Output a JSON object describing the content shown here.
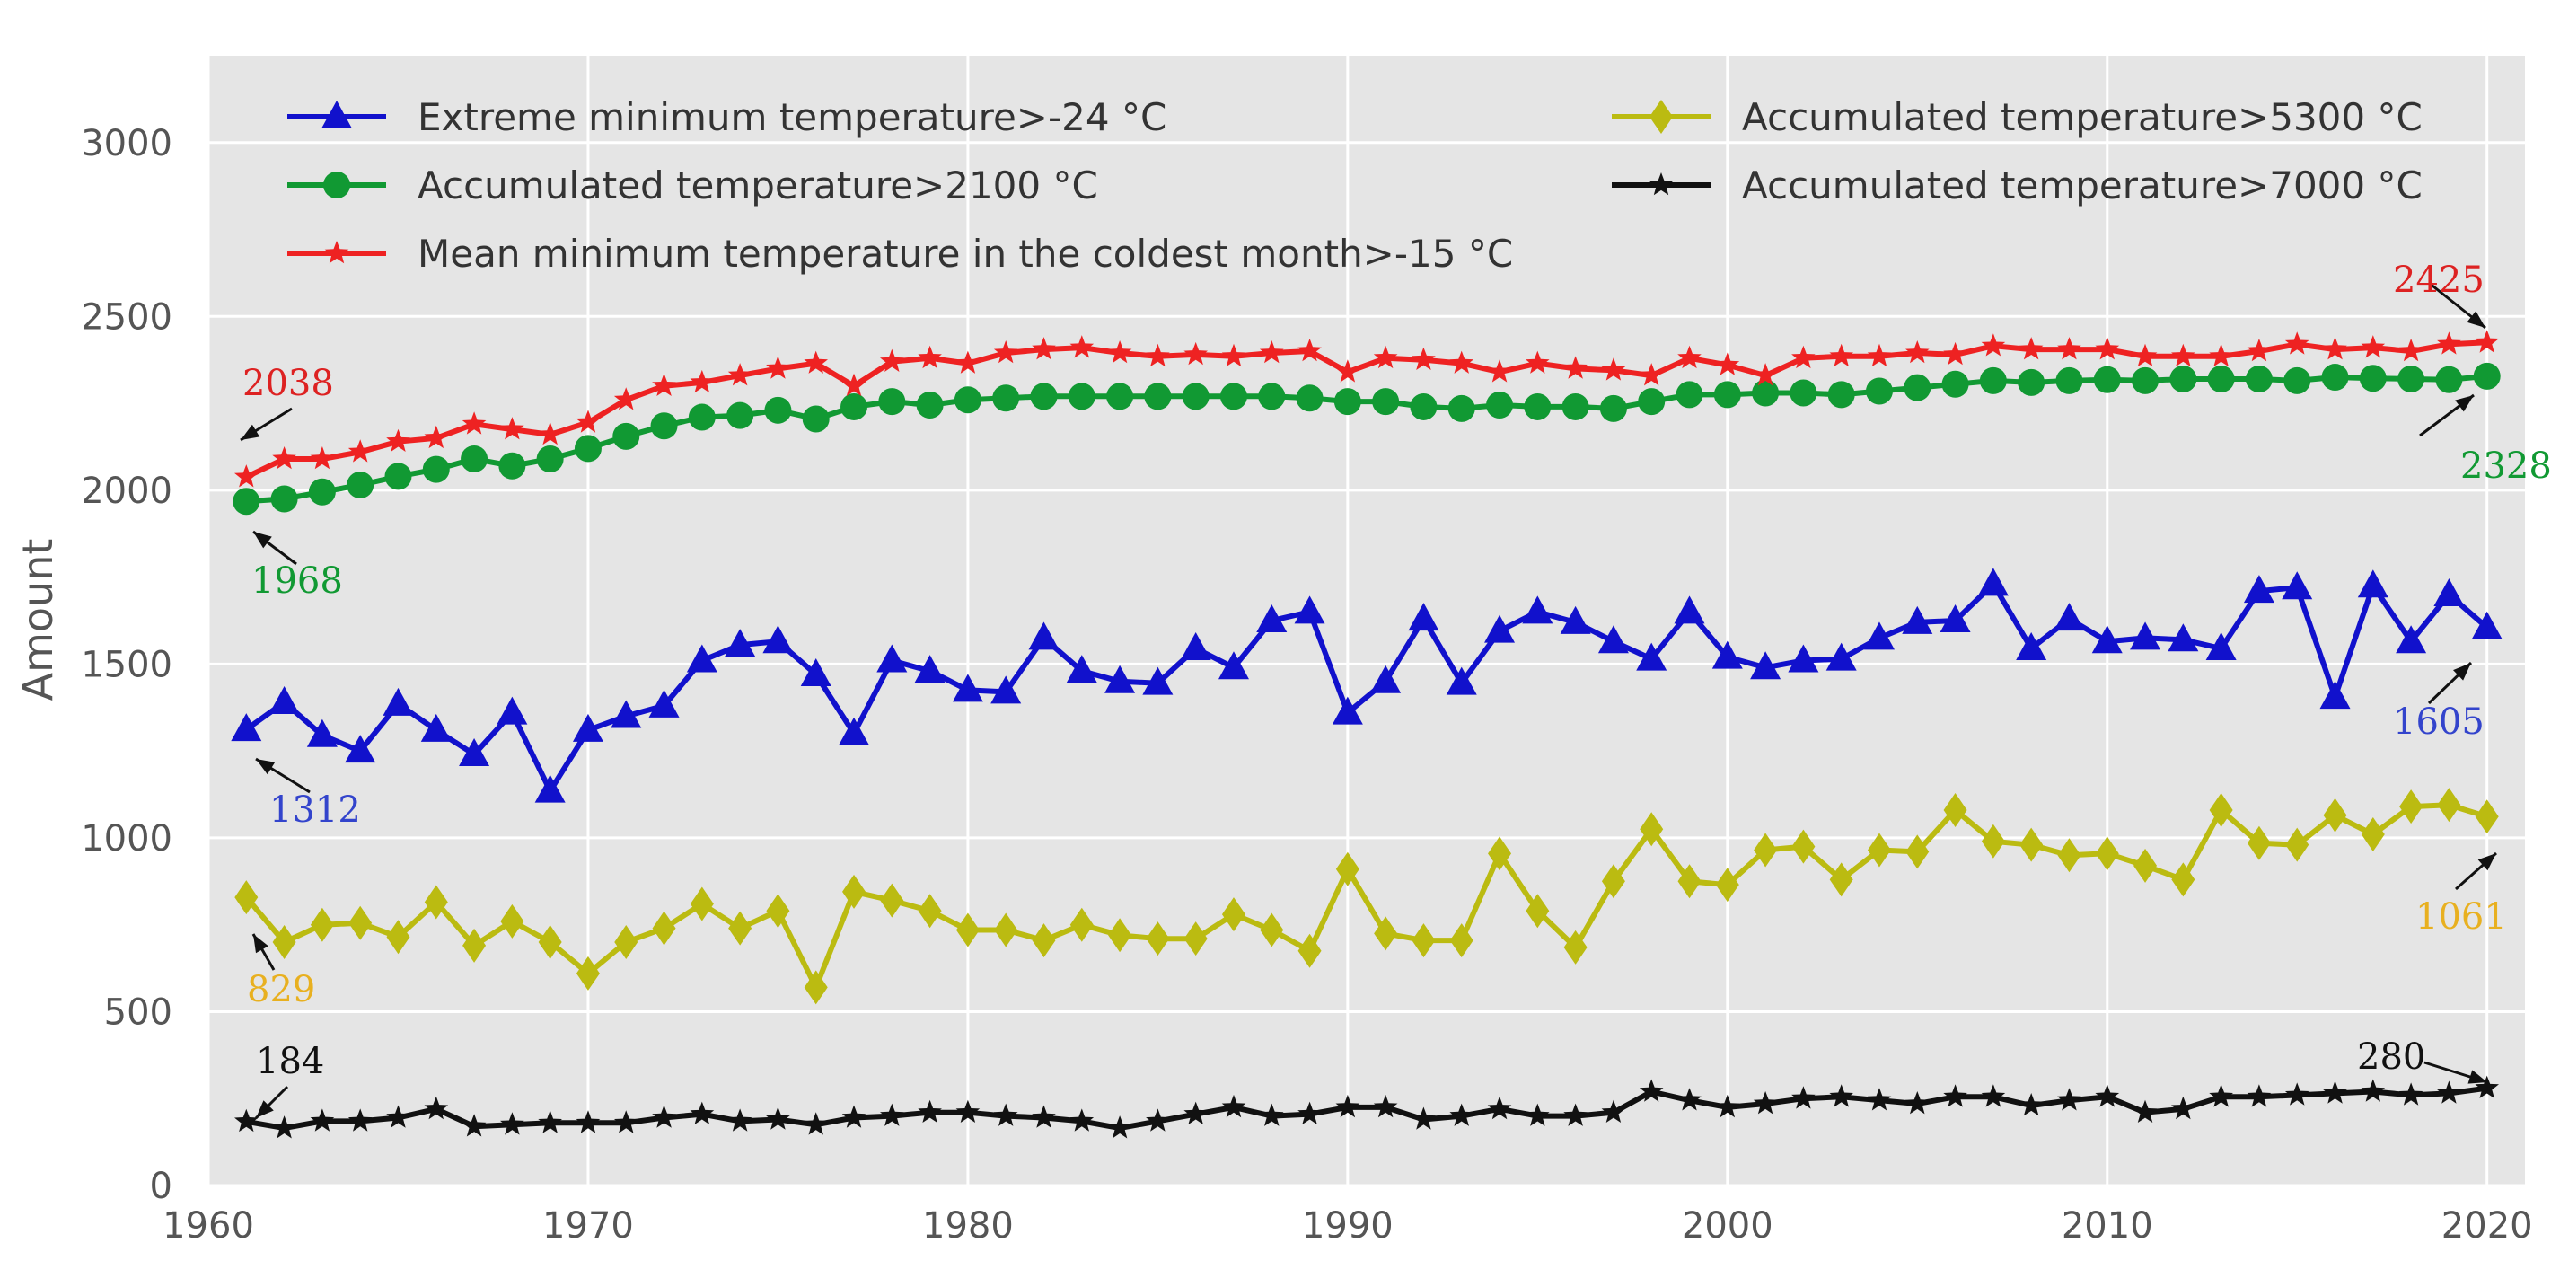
{
  "chart_data": {
    "type": "line",
    "title": "",
    "xlabel": "",
    "ylabel": "Amount",
    "xlim": [
      1960,
      2021
    ],
    "ylim": [
      0,
      3250
    ],
    "x_ticks": [
      "1960",
      "1970",
      "1980",
      "1990",
      "2000",
      "2010",
      "2020"
    ],
    "y_ticks": [
      "0",
      "500",
      "1000",
      "1500",
      "2000",
      "2500",
      "3000"
    ],
    "grid": true,
    "legend_position": "top",
    "x": [
      1961,
      1962,
      1963,
      1964,
      1965,
      1966,
      1967,
      1968,
      1969,
      1970,
      1971,
      1972,
      1973,
      1974,
      1975,
      1976,
      1977,
      1978,
      1979,
      1980,
      1981,
      1982,
      1983,
      1984,
      1985,
      1986,
      1987,
      1988,
      1989,
      1990,
      1991,
      1992,
      1993,
      1994,
      1995,
      1996,
      1997,
      1998,
      1999,
      2000,
      2001,
      2002,
      2003,
      2004,
      2005,
      2006,
      2007,
      2008,
      2009,
      2010,
      2011,
      2012,
      2013,
      2014,
      2015,
      2016,
      2017,
      2018,
      2019,
      2020
    ],
    "series": [
      {
        "name": "Extreme minimum temperature>-24 °C",
        "color": "#1111cc",
        "marker": "triangle",
        "values": [
          1312,
          1390,
          1295,
          1250,
          1385,
          1310,
          1240,
          1360,
          1135,
          1310,
          1350,
          1380,
          1510,
          1555,
          1565,
          1470,
          1300,
          1510,
          1480,
          1425,
          1420,
          1575,
          1480,
          1450,
          1445,
          1545,
          1490,
          1625,
          1650,
          1360,
          1450,
          1630,
          1445,
          1595,
          1650,
          1620,
          1565,
          1515,
          1650,
          1520,
          1490,
          1510,
          1515,
          1575,
          1620,
          1625,
          1730,
          1545,
          1630,
          1565,
          1575,
          1570,
          1545,
          1710,
          1720,
          1405,
          1725,
          1565,
          1700,
          1605
        ]
      },
      {
        "name": "Accumulated temperature>2100 °C",
        "color": "#119933",
        "marker": "circle",
        "values": [
          1968,
          1975,
          1995,
          2015,
          2040,
          2060,
          2090,
          2070,
          2090,
          2120,
          2155,
          2185,
          2210,
          2215,
          2230,
          2205,
          2240,
          2255,
          2245,
          2260,
          2265,
          2270,
          2270,
          2270,
          2270,
          2270,
          2270,
          2270,
          2265,
          2255,
          2255,
          2240,
          2235,
          2245,
          2240,
          2240,
          2235,
          2255,
          2275,
          2275,
          2280,
          2280,
          2275,
          2285,
          2295,
          2305,
          2315,
          2310,
          2315,
          2318,
          2315,
          2320,
          2320,
          2320,
          2315,
          2325,
          2322,
          2320,
          2318,
          2328
        ]
      },
      {
        "name": "Mean minimum temperature in the coldest month>-15 °C",
        "color": "#ee2222",
        "marker": "star",
        "values": [
          2038,
          2090,
          2090,
          2110,
          2140,
          2150,
          2190,
          2175,
          2160,
          2195,
          2260,
          2300,
          2310,
          2330,
          2350,
          2365,
          2300,
          2370,
          2380,
          2365,
          2395,
          2405,
          2410,
          2395,
          2385,
          2390,
          2385,
          2395,
          2400,
          2340,
          2380,
          2375,
          2365,
          2340,
          2365,
          2350,
          2345,
          2330,
          2380,
          2360,
          2330,
          2380,
          2385,
          2385,
          2395,
          2390,
          2415,
          2405,
          2405,
          2405,
          2385,
          2385,
          2385,
          2400,
          2420,
          2405,
          2410,
          2400,
          2420,
          2425
        ]
      },
      {
        "name": "Accumulated temperature>5300 °C",
        "color": "#bbbb11",
        "marker": "diamond",
        "values": [
          829,
          700,
          750,
          755,
          715,
          815,
          690,
          760,
          700,
          610,
          700,
          740,
          810,
          740,
          790,
          570,
          845,
          820,
          790,
          735,
          735,
          705,
          750,
          720,
          710,
          710,
          780,
          735,
          675,
          910,
          725,
          705,
          705,
          955,
          790,
          685,
          875,
          1025,
          875,
          865,
          965,
          975,
          880,
          965,
          960,
          1080,
          990,
          980,
          950,
          955,
          920,
          880,
          1080,
          985,
          980,
          1065,
          1010,
          1090,
          1095,
          1061
        ]
      },
      {
        "name": "Accumulated temperature>7000 °C",
        "color": "#111111",
        "marker": "star",
        "values": [
          184,
          165,
          185,
          185,
          195,
          220,
          170,
          175,
          180,
          180,
          180,
          195,
          205,
          185,
          190,
          175,
          195,
          200,
          210,
          210,
          200,
          195,
          185,
          165,
          185,
          205,
          225,
          200,
          205,
          225,
          225,
          190,
          200,
          220,
          200,
          200,
          210,
          270,
          245,
          225,
          235,
          250,
          255,
          245,
          235,
          255,
          255,
          230,
          245,
          255,
          210,
          220,
          255,
          255,
          260,
          265,
          270,
          260,
          265,
          280
        ]
      }
    ],
    "annotations": [
      {
        "text": "2038",
        "color": "#dd2222",
        "series": 2,
        "point_year": 1961
      },
      {
        "text": "1968",
        "color": "#119933",
        "series": 1,
        "point_year": 1961
      },
      {
        "text": "1312",
        "color": "#3344cc",
        "series": 0,
        "point_year": 1961
      },
      {
        "text": "829",
        "color": "#e8b020",
        "series": 3,
        "point_year": 1961
      },
      {
        "text": "184",
        "color": "#111111",
        "series": 4,
        "point_year": 1961
      },
      {
        "text": "2425",
        "color": "#dd2222",
        "series": 2,
        "point_year": 2020
      },
      {
        "text": "2328",
        "color": "#119933",
        "series": 1,
        "point_year": 2020
      },
      {
        "text": "1605",
        "color": "#3344cc",
        "series": 0,
        "point_year": 2020
      },
      {
        "text": "1061",
        "color": "#e8b020",
        "series": 3,
        "point_year": 2020
      },
      {
        "text": "280",
        "color": "#111111",
        "series": 4,
        "point_year": 2020
      }
    ]
  }
}
